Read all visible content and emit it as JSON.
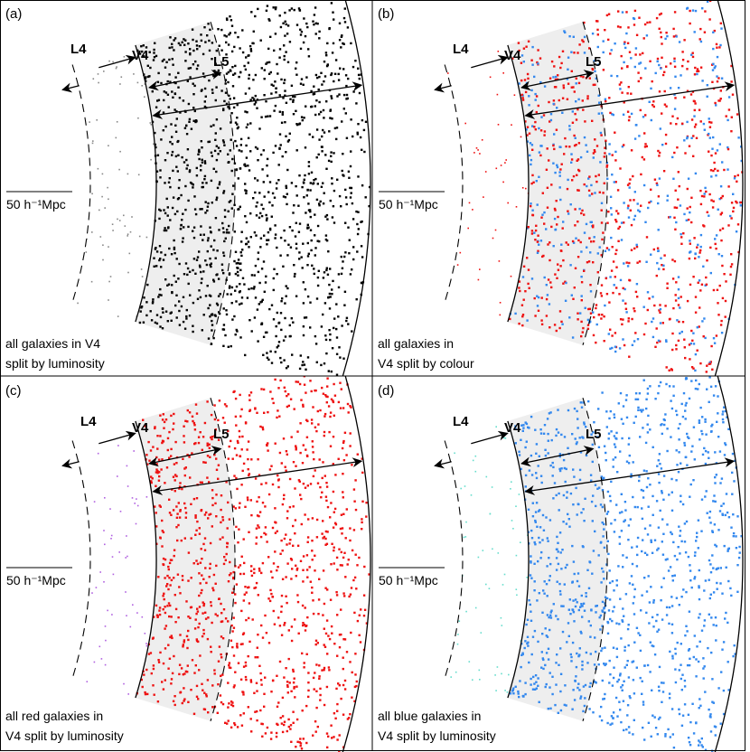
{
  "scale_bar_label": "50 h⁻¹Mpc",
  "region_labels": {
    "l4": "L4",
    "v4": "V4",
    "l5": "L5"
  },
  "colors": {
    "shade": "#eeeeee",
    "black": "#000000",
    "grey": "#888888",
    "red": "#ee1111",
    "purple": "#b060e0",
    "blue": "#3388ee",
    "cyan": "#66ddcc"
  },
  "panels": [
    {
      "id": "a",
      "tag": "(a)",
      "caption_lines": [
        "all galaxies in V4",
        "split by luminosity"
      ],
      "inner_points": {
        "color_key": "grey",
        "count": 70
      },
      "outer_points": {
        "color_key": "black",
        "count": 1300
      },
      "mixed": false
    },
    {
      "id": "b",
      "tag": "(b)",
      "caption_lines": [
        "all galaxies in",
        "V4 split by colour"
      ],
      "inner_points": {
        "color_key": "red",
        "count": 40
      },
      "outer_points": {
        "color_key": "red",
        "count": 1100
      },
      "mixed": true,
      "mix_color_key": "blue"
    },
    {
      "id": "c",
      "tag": "(c)",
      "caption_lines": [
        "all red galaxies in",
        "V4 split by luminosity"
      ],
      "inner_points": {
        "color_key": "purple",
        "count": 50
      },
      "outer_points": {
        "color_key": "red",
        "count": 1150
      },
      "mixed": false
    },
    {
      "id": "d",
      "tag": "(d)",
      "caption_lines": [
        "all blue galaxies in",
        "V4 split by luminosity"
      ],
      "inner_points": {
        "color_key": "cyan",
        "count": 60
      },
      "outer_points": {
        "color_key": "blue",
        "count": 1100
      },
      "mixed": false
    }
  ]
}
